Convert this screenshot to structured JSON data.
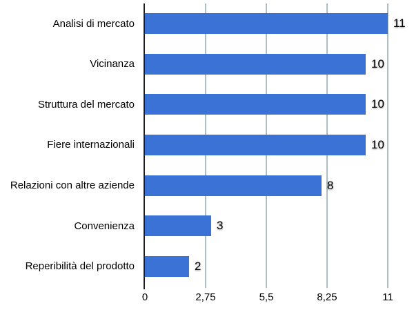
{
  "chart_data": {
    "type": "bar",
    "orientation": "horizontal",
    "categories": [
      "Analisi di mercato",
      "Vicinanza",
      "Struttura del mercato",
      "Fiere internazionali",
      "Relazioni con altre aziende",
      "Convenienza",
      "Reperibilità del prodotto"
    ],
    "values": [
      11,
      10,
      10,
      10,
      8,
      3,
      2
    ],
    "value_labels": [
      "11",
      "10",
      "10",
      "10",
      "8",
      "3",
      "2"
    ],
    "xlim": [
      0,
      11
    ],
    "x_ticks": [
      {
        "value": 0,
        "label": "0"
      },
      {
        "value": 2.75,
        "label": "2,75"
      },
      {
        "value": 5.5,
        "label": "5,5"
      },
      {
        "value": 8.25,
        "label": "8,25"
      },
      {
        "value": 11,
        "label": "11"
      }
    ],
    "grid": "vertical gridlines at x ticks",
    "legend": "none",
    "ylabel": "",
    "xlabel": ""
  },
  "colors": {
    "bar": "#3B72D6",
    "gridline": "#ABBEC3",
    "axis": "#1E1E1E",
    "text": "#000000",
    "background": "#FFFFFF"
  }
}
